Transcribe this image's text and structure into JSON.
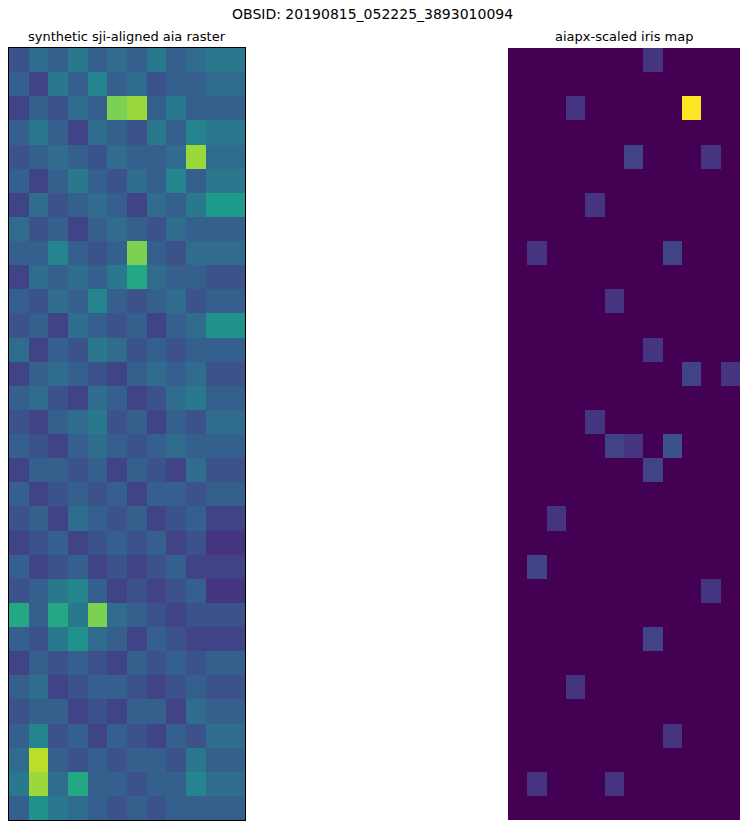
{
  "title": "OBSID: 20190815_052225_3893010094",
  "chart_data": [
    {
      "type": "heatmap",
      "title": "synthetic sji-aligned aia raster",
      "color": "Viridis",
      "zlim": [
        0,
        1
      ],
      "tick_labels": false,
      "z": [
        [
          0.25,
          0.35,
          0.3,
          0.4,
          0.3,
          0.35,
          0.3,
          0.4,
          0.3,
          0.35,
          0.4,
          0.4
        ],
        [
          0.3,
          0.2,
          0.4,
          0.3,
          0.45,
          0.3,
          0.35,
          0.25,
          0.3,
          0.3,
          0.35,
          0.35
        ],
        [
          0.2,
          0.3,
          0.25,
          0.35,
          0.3,
          0.8,
          0.85,
          0.3,
          0.4,
          0.3,
          0.3,
          0.3
        ],
        [
          0.3,
          0.4,
          0.3,
          0.2,
          0.35,
          0.3,
          0.25,
          0.4,
          0.3,
          0.45,
          0.4,
          0.4
        ],
        [
          0.25,
          0.3,
          0.35,
          0.3,
          0.25,
          0.35,
          0.3,
          0.3,
          0.35,
          0.85,
          0.35,
          0.35
        ],
        [
          0.3,
          0.2,
          0.3,
          0.4,
          0.3,
          0.25,
          0.35,
          0.3,
          0.45,
          0.3,
          0.4,
          0.4
        ],
        [
          0.2,
          0.35,
          0.25,
          0.3,
          0.35,
          0.3,
          0.2,
          0.35,
          0.3,
          0.4,
          0.55,
          0.55
        ],
        [
          0.35,
          0.25,
          0.3,
          0.2,
          0.3,
          0.35,
          0.3,
          0.25,
          0.35,
          0.3,
          0.3,
          0.3
        ],
        [
          0.3,
          0.3,
          0.45,
          0.3,
          0.25,
          0.3,
          0.8,
          0.3,
          0.25,
          0.35,
          0.35,
          0.35
        ],
        [
          0.2,
          0.35,
          0.3,
          0.35,
          0.3,
          0.4,
          0.6,
          0.35,
          0.3,
          0.3,
          0.25,
          0.25
        ],
        [
          0.3,
          0.25,
          0.35,
          0.3,
          0.45,
          0.3,
          0.25,
          0.3,
          0.35,
          0.25,
          0.3,
          0.3
        ],
        [
          0.25,
          0.3,
          0.2,
          0.35,
          0.3,
          0.25,
          0.3,
          0.2,
          0.3,
          0.35,
          0.5,
          0.5
        ],
        [
          0.35,
          0.2,
          0.3,
          0.25,
          0.4,
          0.35,
          0.25,
          0.3,
          0.25,
          0.3,
          0.3,
          0.3
        ],
        [
          0.2,
          0.3,
          0.35,
          0.3,
          0.25,
          0.2,
          0.3,
          0.35,
          0.3,
          0.35,
          0.25,
          0.25
        ],
        [
          0.3,
          0.35,
          0.25,
          0.2,
          0.35,
          0.3,
          0.2,
          0.25,
          0.35,
          0.4,
          0.3,
          0.3
        ],
        [
          0.25,
          0.2,
          0.3,
          0.35,
          0.4,
          0.25,
          0.3,
          0.2,
          0.3,
          0.25,
          0.35,
          0.35
        ],
        [
          0.3,
          0.25,
          0.2,
          0.3,
          0.35,
          0.3,
          0.25,
          0.3,
          0.35,
          0.3,
          0.3,
          0.3
        ],
        [
          0.2,
          0.3,
          0.3,
          0.25,
          0.3,
          0.2,
          0.3,
          0.25,
          0.2,
          0.35,
          0.25,
          0.25
        ],
        [
          0.3,
          0.2,
          0.25,
          0.3,
          0.25,
          0.3,
          0.2,
          0.3,
          0.3,
          0.25,
          0.3,
          0.3
        ],
        [
          0.25,
          0.3,
          0.2,
          0.35,
          0.3,
          0.25,
          0.3,
          0.2,
          0.25,
          0.3,
          0.2,
          0.2
        ],
        [
          0.2,
          0.25,
          0.3,
          0.2,
          0.25,
          0.3,
          0.25,
          0.3,
          0.2,
          0.25,
          0.15,
          0.15
        ],
        [
          0.3,
          0.2,
          0.25,
          0.3,
          0.2,
          0.25,
          0.2,
          0.25,
          0.3,
          0.2,
          0.2,
          0.2
        ],
        [
          0.25,
          0.3,
          0.4,
          0.45,
          0.3,
          0.2,
          0.25,
          0.2,
          0.25,
          0.3,
          0.15,
          0.15
        ],
        [
          0.6,
          0.3,
          0.6,
          0.4,
          0.8,
          0.35,
          0.3,
          0.25,
          0.2,
          0.25,
          0.25,
          0.25
        ],
        [
          0.3,
          0.25,
          0.4,
          0.5,
          0.35,
          0.3,
          0.2,
          0.3,
          0.25,
          0.2,
          0.2,
          0.2
        ],
        [
          0.2,
          0.3,
          0.25,
          0.3,
          0.25,
          0.2,
          0.3,
          0.25,
          0.3,
          0.25,
          0.3,
          0.3
        ],
        [
          0.3,
          0.35,
          0.2,
          0.25,
          0.3,
          0.3,
          0.25,
          0.2,
          0.25,
          0.3,
          0.25,
          0.25
        ],
        [
          0.25,
          0.3,
          0.3,
          0.2,
          0.25,
          0.2,
          0.3,
          0.3,
          0.2,
          0.35,
          0.3,
          0.3
        ],
        [
          0.3,
          0.45,
          0.25,
          0.3,
          0.2,
          0.3,
          0.25,
          0.2,
          0.3,
          0.25,
          0.35,
          0.35
        ],
        [
          0.35,
          0.9,
          0.3,
          0.25,
          0.3,
          0.25,
          0.3,
          0.3,
          0.25,
          0.4,
          0.3,
          0.3
        ],
        [
          0.4,
          0.85,
          0.35,
          0.6,
          0.3,
          0.3,
          0.25,
          0.3,
          0.3,
          0.45,
          0.35,
          0.35
        ],
        [
          0.3,
          0.5,
          0.4,
          0.35,
          0.3,
          0.25,
          0.3,
          0.25,
          0.3,
          0.3,
          0.3,
          0.3
        ]
      ]
    },
    {
      "type": "heatmap",
      "title": "aiapx-scaled iris map",
      "color": "Viridis",
      "zlim": [
        0,
        1
      ],
      "tick_labels": false,
      "z": [
        [
          0,
          0,
          0,
          0,
          0,
          0,
          0,
          0.15,
          0,
          0,
          0,
          0
        ],
        [
          0,
          0,
          0,
          0,
          0,
          0,
          0,
          0,
          0,
          0,
          0,
          0
        ],
        [
          0,
          0,
          0,
          0.15,
          0,
          0,
          0,
          0,
          0,
          1.0,
          0,
          0
        ],
        [
          0,
          0,
          0,
          0,
          0,
          0,
          0,
          0,
          0,
          0,
          0,
          0
        ],
        [
          0,
          0,
          0,
          0,
          0,
          0,
          0.2,
          0,
          0,
          0,
          0.15,
          0
        ],
        [
          0,
          0,
          0,
          0,
          0,
          0,
          0,
          0,
          0,
          0,
          0,
          0
        ],
        [
          0,
          0,
          0,
          0,
          0.15,
          0,
          0,
          0,
          0,
          0,
          0,
          0
        ],
        [
          0,
          0,
          0,
          0,
          0,
          0,
          0,
          0,
          0,
          0,
          0,
          0
        ],
        [
          0,
          0.15,
          0,
          0,
          0,
          0,
          0,
          0,
          0.2,
          0,
          0,
          0
        ],
        [
          0,
          0,
          0,
          0,
          0,
          0,
          0,
          0,
          0,
          0,
          0,
          0
        ],
        [
          0,
          0,
          0,
          0,
          0,
          0.15,
          0,
          0,
          0,
          0,
          0,
          0
        ],
        [
          0,
          0,
          0,
          0,
          0,
          0,
          0,
          0,
          0,
          0,
          0,
          0
        ],
        [
          0,
          0,
          0,
          0,
          0,
          0,
          0,
          0.15,
          0,
          0,
          0,
          0
        ],
        [
          0,
          0,
          0,
          0,
          0,
          0,
          0,
          0,
          0,
          0.2,
          0,
          0.15
        ],
        [
          0,
          0,
          0,
          0,
          0,
          0,
          0,
          0,
          0,
          0,
          0,
          0
        ],
        [
          0,
          0,
          0,
          0,
          0.15,
          0,
          0,
          0,
          0,
          0,
          0,
          0
        ],
        [
          0,
          0,
          0,
          0,
          0,
          0.2,
          0.15,
          0,
          0.25,
          0,
          0,
          0
        ],
        [
          0,
          0,
          0,
          0,
          0,
          0,
          0,
          0.2,
          0,
          0,
          0,
          0
        ],
        [
          0,
          0,
          0,
          0,
          0,
          0,
          0,
          0,
          0,
          0,
          0,
          0
        ],
        [
          0,
          0,
          0.15,
          0,
          0,
          0,
          0,
          0,
          0,
          0,
          0,
          0
        ],
        [
          0,
          0,
          0,
          0,
          0,
          0,
          0,
          0,
          0,
          0,
          0,
          0
        ],
        [
          0,
          0.2,
          0,
          0,
          0,
          0,
          0,
          0,
          0,
          0,
          0,
          0
        ],
        [
          0,
          0,
          0,
          0,
          0,
          0,
          0,
          0,
          0,
          0,
          0.15,
          0
        ],
        [
          0,
          0,
          0,
          0,
          0,
          0,
          0,
          0,
          0,
          0,
          0,
          0
        ],
        [
          0,
          0,
          0,
          0,
          0,
          0,
          0,
          0.2,
          0,
          0,
          0,
          0
        ],
        [
          0,
          0,
          0,
          0,
          0,
          0,
          0,
          0,
          0,
          0,
          0,
          0
        ],
        [
          0,
          0,
          0,
          0.15,
          0,
          0,
          0,
          0,
          0,
          0,
          0,
          0
        ],
        [
          0,
          0,
          0,
          0,
          0,
          0,
          0,
          0,
          0,
          0,
          0,
          0
        ],
        [
          0,
          0,
          0,
          0,
          0,
          0,
          0,
          0,
          0.15,
          0,
          0,
          0
        ],
        [
          0,
          0,
          0,
          0,
          0,
          0,
          0,
          0,
          0,
          0,
          0,
          0
        ],
        [
          0,
          0.15,
          0,
          0,
          0,
          0.15,
          0,
          0,
          0,
          0,
          0,
          0
        ],
        [
          0,
          0,
          0,
          0,
          0,
          0,
          0,
          0,
          0,
          0,
          0,
          0
        ]
      ]
    }
  ]
}
